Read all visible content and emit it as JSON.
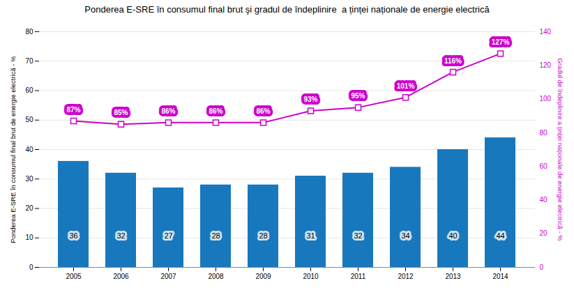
{
  "chart_data": {
    "type": "bar",
    "title": "Ponderea E-SRE în consumul final brut şi gradul de îndeplinire  a ținței naționale de energie electrică",
    "categories": [
      "2005",
      "2006",
      "2007",
      "2008",
      "2009",
      "2010",
      "2011",
      "2012",
      "2013",
      "2014"
    ],
    "series": [
      {
        "type": "bar",
        "color": "#1878be",
        "values": [
          36,
          32,
          27,
          28,
          28,
          31,
          32,
          34,
          40,
          44
        ],
        "data_labels": true
      },
      {
        "type": "line",
        "axis": "y2",
        "color": "#cc00cc",
        "marker": "square",
        "line_style": "solid",
        "values": [
          87,
          85,
          86,
          86,
          86,
          93,
          95,
          101,
          116,
          127
        ],
        "data_labels": true,
        "value_labels": [
          "87%",
          "85%",
          "86%",
          "86%",
          "86%",
          "93%",
          "95%",
          "101%",
          "116%",
          "127%"
        ]
      }
    ],
    "ylabel": "Ponderea E-SRE în consumul final brut de energie electrică - %",
    "y2label": "Gradul de îndeplinire a ținței naționale de energie electrică - %",
    "ylim": [
      0,
      80
    ],
    "yticks": [
      0,
      10,
      20,
      30,
      40,
      50,
      60,
      70,
      80
    ],
    "y2lim": [
      0,
      140
    ],
    "y2ticks": [
      0,
      20,
      40,
      60,
      80,
      100,
      120,
      140
    ],
    "grid": true
  }
}
